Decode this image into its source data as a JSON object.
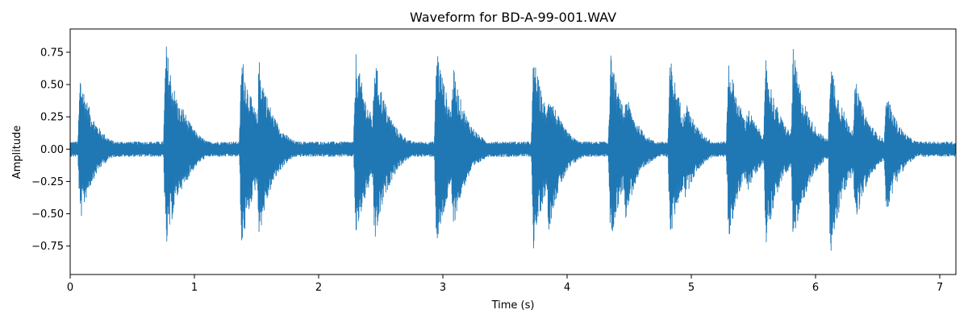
{
  "chart_data": {
    "type": "line",
    "title": "Waveform for BD-A-99-001.WAV",
    "xlabel": "Time (s)",
    "ylabel": "Amplitude",
    "xlim": [
      0,
      7.13
    ],
    "ylim": [
      -0.97,
      0.93
    ],
    "xticks": [
      0,
      1,
      2,
      3,
      4,
      5,
      6,
      7
    ],
    "xtick_labels": [
      "0",
      "1",
      "2",
      "3",
      "4",
      "5",
      "6",
      "7"
    ],
    "yticks": [
      -0.75,
      -0.5,
      -0.25,
      0.0,
      0.25,
      0.5,
      0.75
    ],
    "ytick_labels": [
      "−0.75",
      "−0.50",
      "−0.25",
      "0.00",
      "0.25",
      "0.50",
      "0.75"
    ],
    "grid": false,
    "series": [
      {
        "color": "#1f77b4",
        "envelope_points": [
          {
            "t": 0.0,
            "max": 0.06,
            "min": -0.06
          },
          {
            "t": 0.08,
            "max": 0.6,
            "min": -0.58
          },
          {
            "t": 0.77,
            "max": 0.84,
            "min": -0.83
          },
          {
            "t": 0.9,
            "max": 0.35,
            "min": -0.35
          },
          {
            "t": 1.38,
            "max": 0.76,
            "min": -0.8
          },
          {
            "t": 1.52,
            "max": 0.71,
            "min": -0.7
          },
          {
            "t": 2.3,
            "max": 0.76,
            "min": -0.72
          },
          {
            "t": 2.45,
            "max": 0.74,
            "min": -0.76
          },
          {
            "t": 2.95,
            "max": 0.84,
            "min": -0.82
          },
          {
            "t": 3.08,
            "max": 0.66,
            "min": -0.64
          },
          {
            "t": 3.73,
            "max": 0.75,
            "min": -0.78
          },
          {
            "t": 3.85,
            "max": 0.5,
            "min": -0.65
          },
          {
            "t": 4.35,
            "max": 0.75,
            "min": -0.75
          },
          {
            "t": 4.47,
            "max": 0.45,
            "min": -0.55
          },
          {
            "t": 4.83,
            "max": 0.73,
            "min": -0.72
          },
          {
            "t": 4.95,
            "max": 0.4,
            "min": -0.4
          },
          {
            "t": 5.3,
            "max": 0.73,
            "min": -0.72
          },
          {
            "t": 5.45,
            "max": 0.35,
            "min": -0.34
          },
          {
            "t": 5.6,
            "max": 0.7,
            "min": -0.75
          },
          {
            "t": 5.82,
            "max": 0.78,
            "min": -0.8
          },
          {
            "t": 6.12,
            "max": 0.73,
            "min": -0.88
          },
          {
            "t": 6.32,
            "max": 0.55,
            "min": -0.62
          },
          {
            "t": 6.57,
            "max": 0.45,
            "min": -0.52
          },
          {
            "t": 7.13,
            "max": 0.05,
            "min": -0.04
          }
        ]
      }
    ]
  }
}
